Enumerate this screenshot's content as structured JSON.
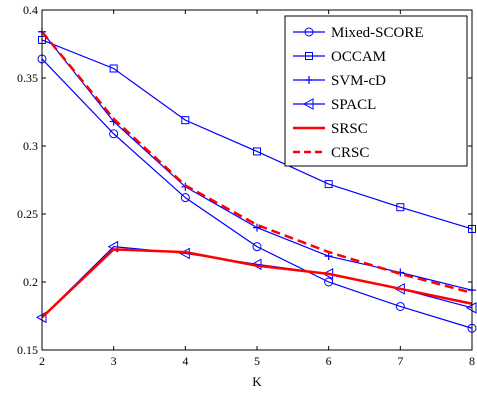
{
  "chart_data": {
    "type": "line",
    "title": "",
    "xlabel": "K",
    "ylabel": "",
    "xlim": [
      2,
      8
    ],
    "ylim": [
      0.15,
      0.4
    ],
    "x": [
      2,
      3,
      4,
      5,
      6,
      7,
      8
    ],
    "x_ticks": [
      "2",
      "3",
      "4",
      "5",
      "6",
      "7",
      "8"
    ],
    "y_ticks": [
      "0.15",
      "0.2",
      "0.25",
      "0.3",
      "0.35",
      "0.4"
    ],
    "grid": false,
    "legend_position": "top-right",
    "series": [
      {
        "name": "Mixed-SCORE",
        "color": "#0000ff",
        "marker": "circle",
        "dash": "solid",
        "values": [
          0.364,
          0.309,
          0.262,
          0.226,
          0.2,
          0.182,
          0.166
        ]
      },
      {
        "name": "OCCAM",
        "color": "#0000ff",
        "marker": "square",
        "dash": "solid",
        "values": [
          0.378,
          0.357,
          0.319,
          0.296,
          0.272,
          0.255,
          0.239
        ]
      },
      {
        "name": "SVM-cD",
        "color": "#0000ff",
        "marker": "plus",
        "dash": "solid",
        "values": [
          0.384,
          0.318,
          0.27,
          0.24,
          0.219,
          0.207,
          0.194
        ]
      },
      {
        "name": "SPACL",
        "color": "#0000ff",
        "marker": "triangle-left",
        "dash": "solid",
        "values": [
          0.174,
          0.226,
          0.221,
          0.213,
          0.206,
          0.195,
          0.181
        ]
      },
      {
        "name": "SRSC",
        "color": "#ff0000",
        "marker": "none",
        "dash": "solid",
        "values": [
          0.174,
          0.224,
          0.222,
          0.212,
          0.206,
          0.195,
          0.184
        ]
      },
      {
        "name": "CRSC",
        "color": "#ff0000",
        "marker": "none",
        "dash": "dashed",
        "values": [
          0.384,
          0.32,
          0.271,
          0.242,
          0.222,
          0.206,
          0.192
        ]
      }
    ]
  }
}
